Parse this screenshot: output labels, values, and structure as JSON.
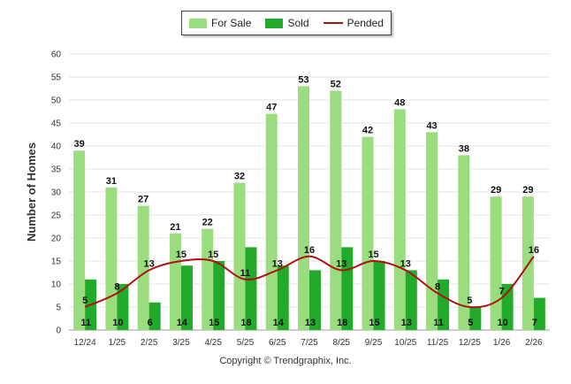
{
  "chart_data": {
    "type": "bar",
    "ylabel": "Number of Homes",
    "ylim": [
      0,
      60
    ],
    "ytick_step": 5,
    "grid": true,
    "legend_position": "top-center",
    "categories": [
      "12/24",
      "1/25",
      "2/25",
      "3/25",
      "4/25",
      "5/25",
      "6/25",
      "7/25",
      "8/25",
      "9/25",
      "10/25",
      "11/25",
      "12/25",
      "1/26",
      "2/26"
    ],
    "series": [
      {
        "name": "For Sale",
        "kind": "bar",
        "color": "#99dd7f",
        "values": [
          39,
          31,
          27,
          21,
          22,
          32,
          47,
          53,
          52,
          42,
          48,
          43,
          38,
          29,
          29
        ]
      },
      {
        "name": "Sold",
        "kind": "bar",
        "color": "#22aa2a",
        "values": [
          11,
          10,
          6,
          14,
          15,
          18,
          14,
          13,
          18,
          15,
          13,
          11,
          5,
          10,
          7
        ]
      },
      {
        "name": "Pended",
        "kind": "line",
        "color": "#b01010",
        "values": [
          5,
          8,
          13,
          15,
          15,
          11,
          13,
          16,
          13,
          15,
          13,
          8,
          5,
          7,
          16
        ]
      }
    ],
    "copyright": "Copyright © Trendgraphix, Inc."
  }
}
